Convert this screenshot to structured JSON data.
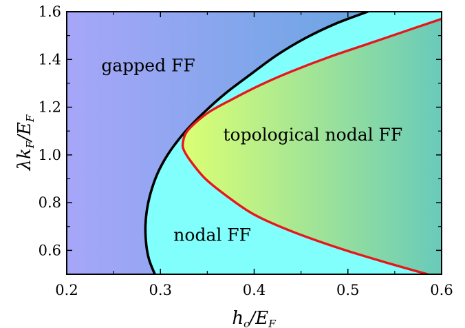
{
  "chart_data": {
    "type": "area",
    "title": "",
    "xlabel": {
      "main": "h",
      "sub": "c",
      "slash": "/",
      "main2": "E",
      "sub2": "F"
    },
    "ylabel": {
      "lambda": "λ",
      "main": "k",
      "sub": "F",
      "slash": "/",
      "main2": "E",
      "sub2": "F"
    },
    "xlim": [
      0.2,
      0.6
    ],
    "ylim": [
      0.5,
      1.6
    ],
    "x_ticks": [
      "0.2",
      "0.3",
      "0.4",
      "0.5",
      "0.6"
    ],
    "y_ticks": [
      "0.6",
      "0.8",
      "1.0",
      "1.2",
      "1.4",
      "1.6"
    ],
    "x_tick_values": [
      0.2,
      0.3,
      0.4,
      0.5,
      0.6
    ],
    "y_tick_values": [
      0.6,
      0.8,
      1.0,
      1.2,
      1.4,
      1.6
    ],
    "regions": [
      {
        "label": "gapped FF",
        "anchor_x": 0.237,
        "anchor_y": 1.35
      },
      {
        "label": "topological nodal FF",
        "anchor_x": 0.367,
        "anchor_y": 1.06
      },
      {
        "label": "nodal FF",
        "anchor_x": 0.314,
        "anchor_y": 0.64
      }
    ],
    "series": [
      {
        "color": "#000000",
        "x": [
          0.294,
          0.288,
          0.285,
          0.284,
          0.286,
          0.291,
          0.299,
          0.311,
          0.327,
          0.347,
          0.37,
          0.397,
          0.425,
          0.455,
          0.487,
          0.521
        ],
        "y": [
          0.5,
          0.56,
          0.62,
          0.7,
          0.78,
          0.86,
          0.94,
          1.02,
          1.1,
          1.18,
          1.26,
          1.34,
          1.42,
          1.49,
          1.55,
          1.6
        ]
      },
      {
        "color": "#e8161b",
        "x": [
          0.585,
          0.54,
          0.49,
          0.44,
          0.4,
          0.37,
          0.348,
          0.333,
          0.325,
          0.324,
          0.327,
          0.336,
          0.352,
          0.375,
          0.405,
          0.44,
          0.48,
          0.525,
          0.57,
          0.6
        ],
        "y": [
          0.5,
          0.55,
          0.61,
          0.68,
          0.75,
          0.83,
          0.9,
          0.97,
          1.02,
          1.05,
          1.09,
          1.13,
          1.18,
          1.23,
          1.29,
          1.35,
          1.41,
          1.47,
          1.53,
          1.57
        ]
      }
    ],
    "colors": {
      "gapped_left": "#a7a6f8",
      "gapped_right": "#5aa6dd",
      "nodal": "#80fffd",
      "topo_left": "#dbff73",
      "topo_right": "#5fc6bf"
    }
  }
}
